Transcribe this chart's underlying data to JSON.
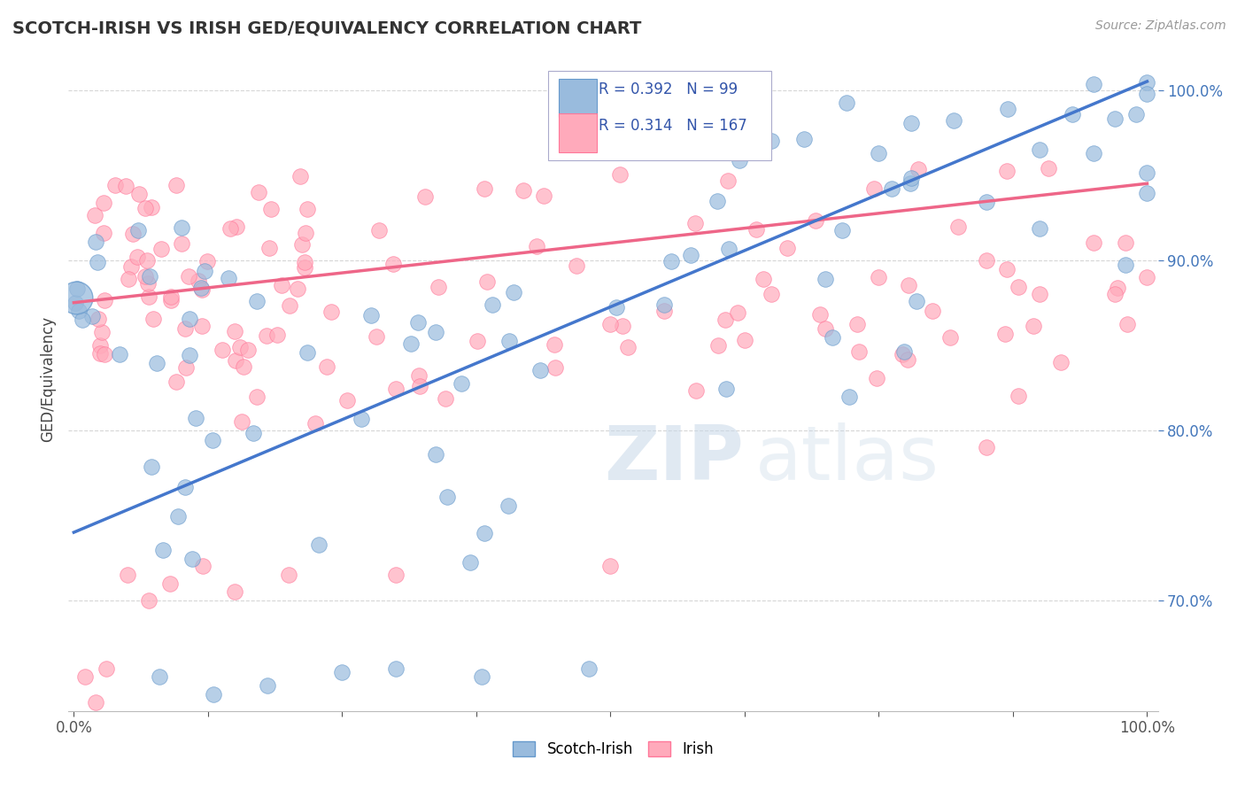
{
  "title": "SCOTCH-IRISH VS IRISH GED/EQUIVALENCY CORRELATION CHART",
  "source_text": "Source: ZipAtlas.com",
  "ylabel": "GED/Equivalency",
  "ytick_labels": [
    "70.0%",
    "80.0%",
    "90.0%",
    "100.0%"
  ],
  "ytick_values": [
    0.7,
    0.8,
    0.9,
    1.0
  ],
  "legend_label_blue": "Scotch-Irish",
  "legend_label_pink": "Irish",
  "R_blue": 0.392,
  "N_blue": 99,
  "R_pink": 0.314,
  "N_pink": 167,
  "blue_scatter_color": "#99BBDD",
  "pink_scatter_color": "#FFAABB",
  "blue_line_color": "#4477CC",
  "pink_line_color": "#EE6688",
  "blue_edge_color": "#6699CC",
  "pink_edge_color": "#FF7799",
  "blue_line_start_y": 0.74,
  "blue_line_end_y": 1.005,
  "pink_line_start_y": 0.875,
  "pink_line_end_y": 0.945,
  "ylim_min": 0.635,
  "ylim_max": 1.025,
  "xlim_min": -0.005,
  "xlim_max": 1.01
}
